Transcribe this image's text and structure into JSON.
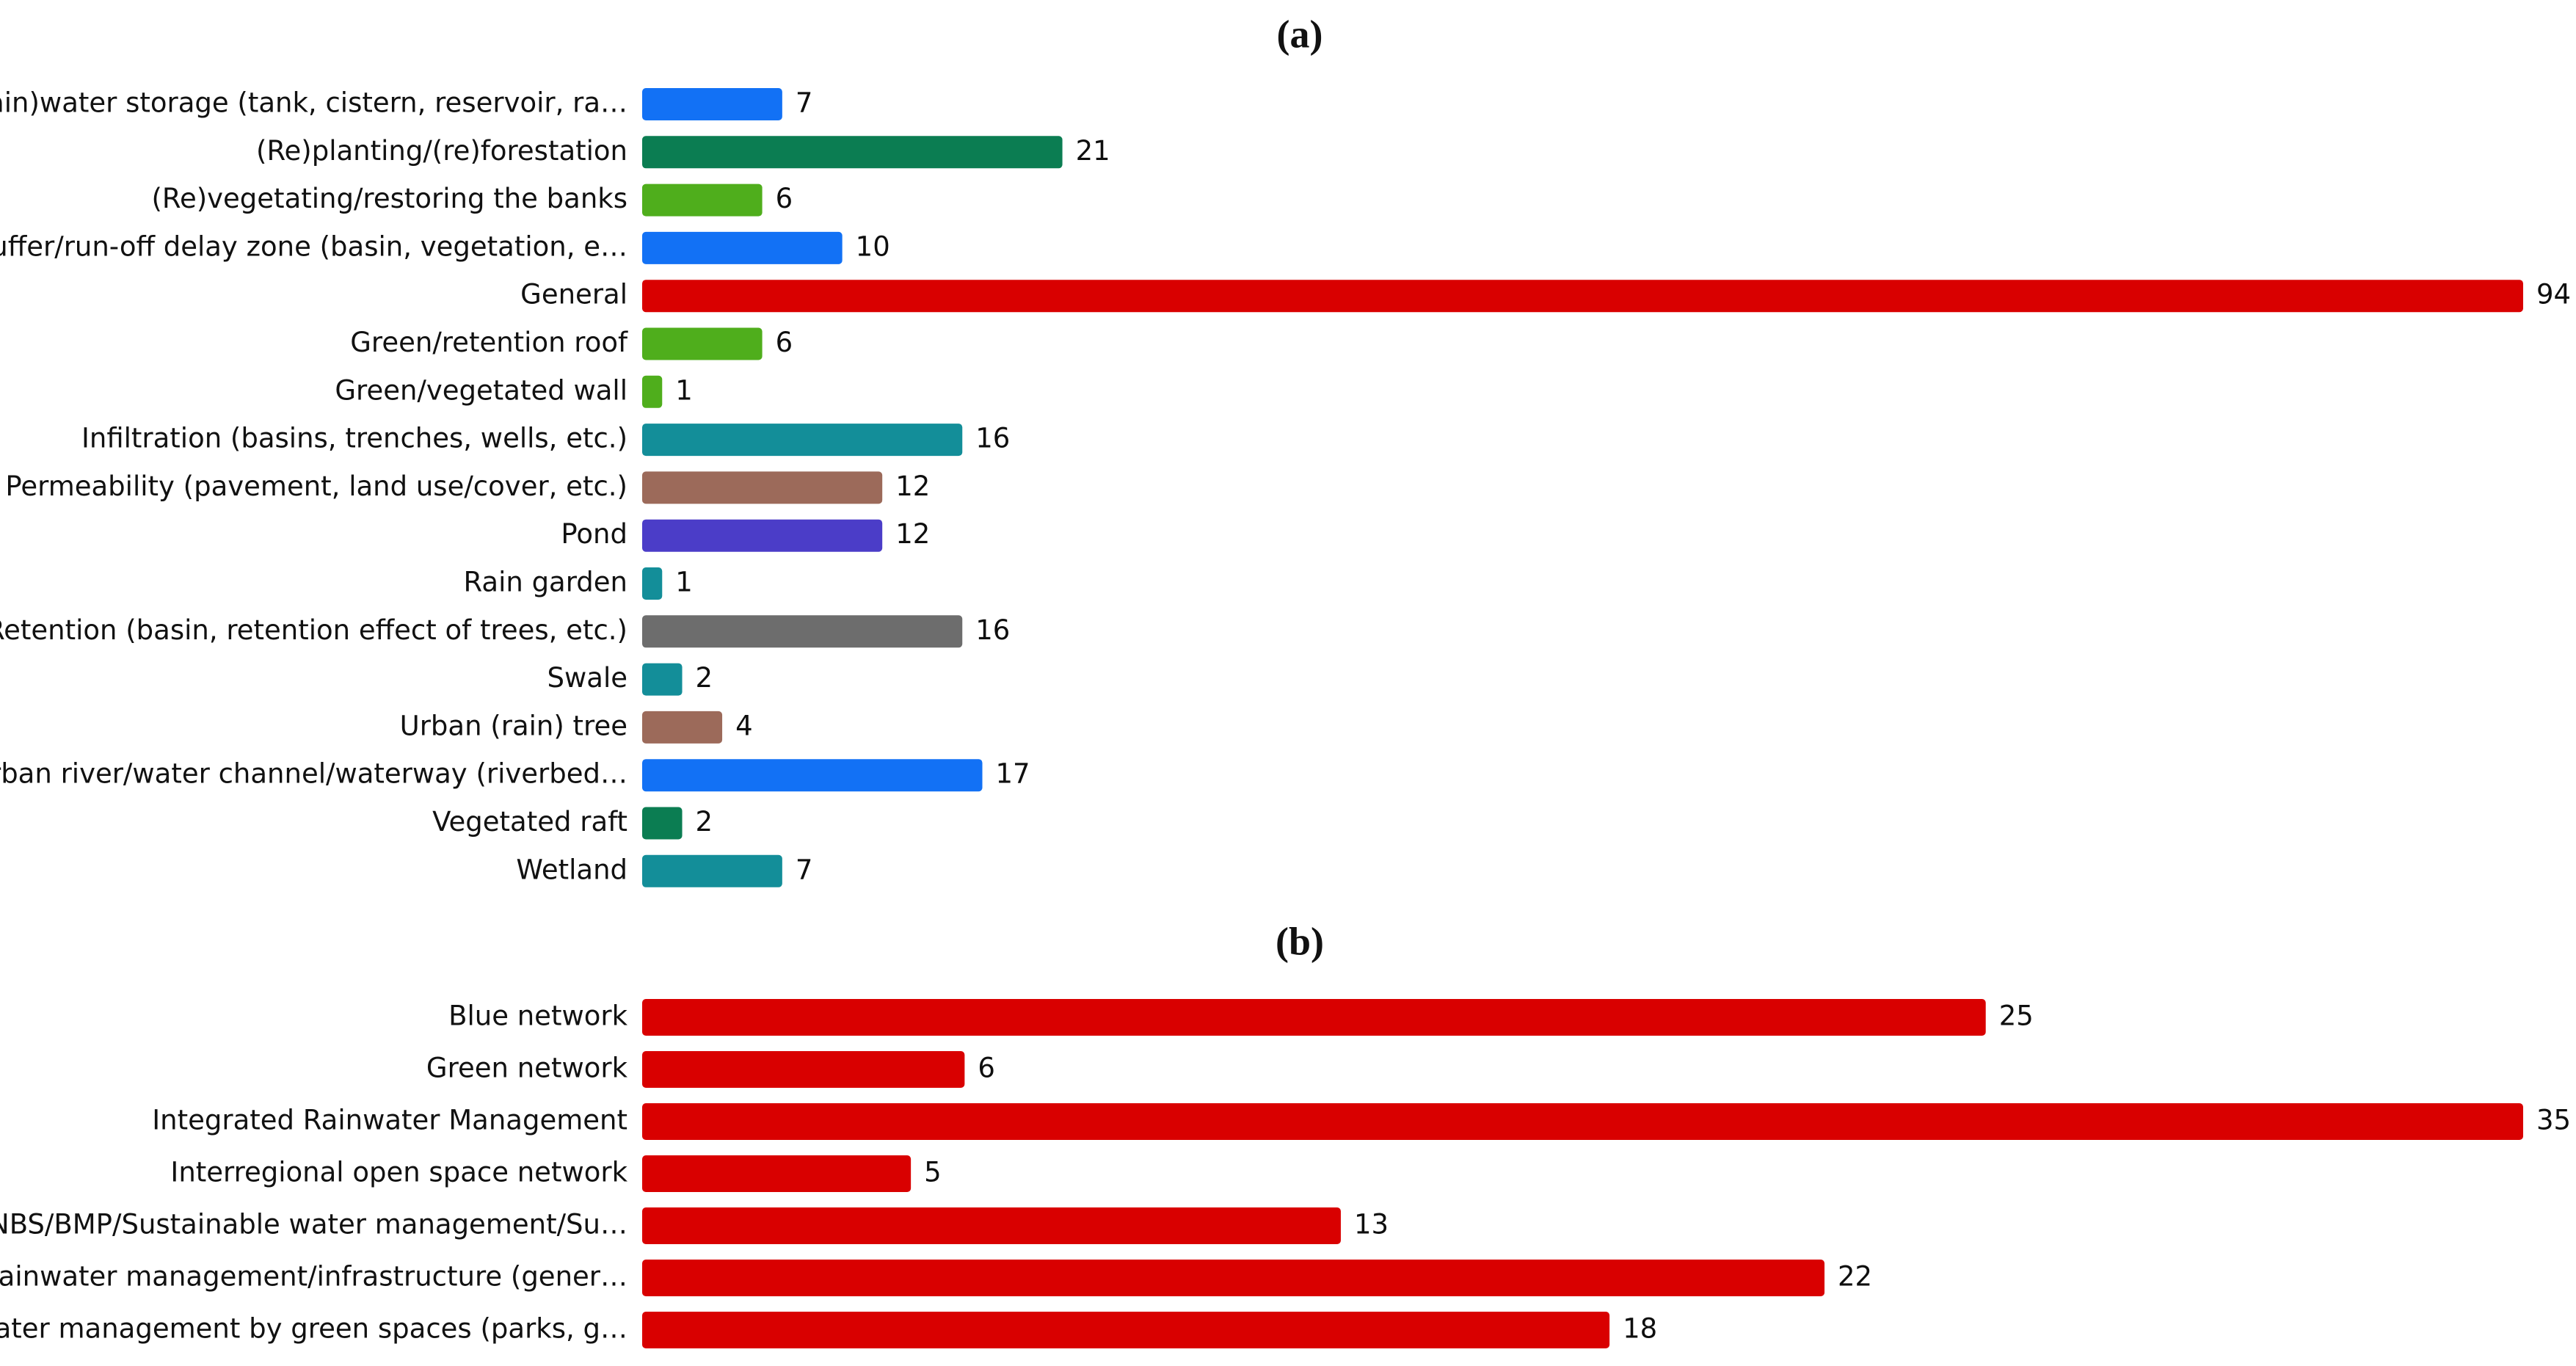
{
  "chart_data": [
    {
      "type": "bar",
      "orientation": "horizontal",
      "title": "(a)",
      "categories": [
        "(Rain)water storage (tank, cistern, reservoir, ra…",
        "(Re)planting/(re)forestation",
        "(Re)vegetating/restoring the banks",
        "Buffer/run-off delay zone (basin, vegetation, e…",
        "General",
        "Green/retention roof",
        "Green/vegetated wall",
        "Infiltration (basins, trenches, wells, etc.)",
        "Permeability (pavement, land use/cover, etc.)",
        "Pond",
        "Rain garden",
        "Retention (basin, retention effect of trees, etc.)",
        "Swale",
        "Urban (rain) tree",
        "Urban river/water channel/waterway (riverbed…",
        "Vegetated raft",
        "Wetland"
      ],
      "values": [
        7,
        21,
        6,
        10,
        94,
        6,
        1,
        16,
        12,
        12,
        1,
        16,
        2,
        4,
        17,
        2,
        7
      ],
      "colors": [
        "#1271f5",
        "#0b7d52",
        "#4fae1c",
        "#1271f5",
        "#d90000",
        "#4fae1c",
        "#4fae1c",
        "#138e99",
        "#9c6a5a",
        "#4b3dc8",
        "#138e99",
        "#6d6d6d",
        "#138e99",
        "#9c6a5a",
        "#1271f5",
        "#0b7d52",
        "#138e99"
      ]
    },
    {
      "type": "bar",
      "orientation": "horizontal",
      "title": "(b)",
      "categories": [
        "Blue network",
        "Green network",
        "Integrated Rainwater Management",
        "Interregional open space network",
        "NBS/BMP/Sustainable water management/Su…",
        "Rainwater management/infrastructure (gener…",
        "Water management by green spaces (parks, g…"
      ],
      "values": [
        25,
        6,
        35,
        5,
        13,
        22,
        18
      ],
      "colors": [
        "#d90000",
        "#d90000",
        "#d90000",
        "#d90000",
        "#d90000",
        "#d90000",
        "#d90000"
      ]
    }
  ]
}
